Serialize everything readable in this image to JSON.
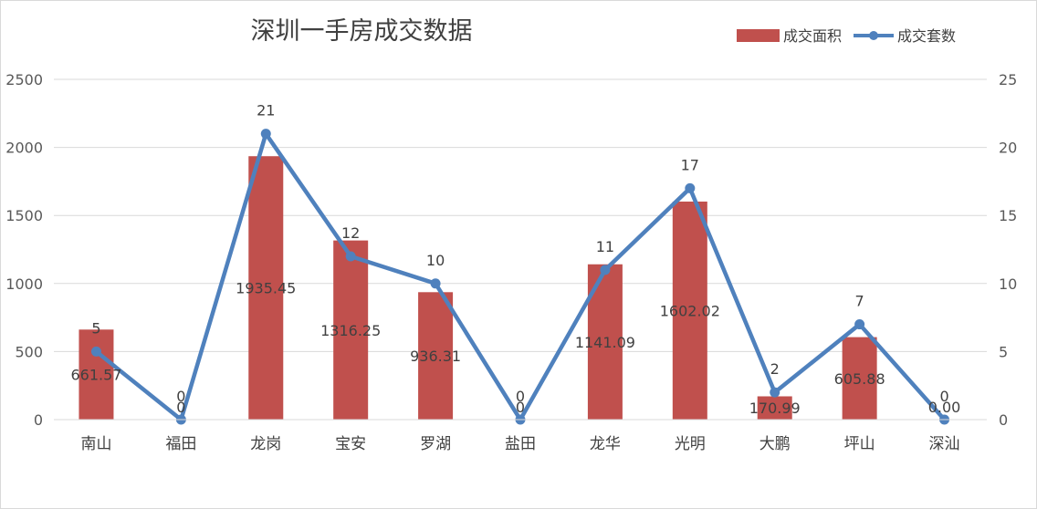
{
  "chart_data": {
    "type": "bar+line",
    "title": "深圳一手房成交数据",
    "categories": [
      "南山",
      "福田",
      "龙岗",
      "宝安",
      "罗湖",
      "盐田",
      "龙华",
      "光明",
      "大鹏",
      "坪山",
      "深汕"
    ],
    "series": [
      {
        "name": "成交面积",
        "type": "bar",
        "axis": "left",
        "color": "#C0504D",
        "values": [
          661.57,
          0,
          1935.45,
          1316.25,
          936.31,
          0,
          1141.09,
          1602.02,
          170.99,
          605.88,
          0
        ],
        "labels": [
          "661.57",
          "0",
          "1935.45",
          "1316.25",
          "936.31",
          "0",
          "1141.09",
          "1602.02",
          "170.99",
          "605.88",
          "0.00"
        ]
      },
      {
        "name": "成交套数",
        "type": "line",
        "axis": "right",
        "color": "#4F81BD",
        "values": [
          5,
          0,
          21,
          12,
          10,
          0,
          11,
          17,
          2,
          7,
          0
        ],
        "labels": [
          "5",
          "0",
          "21",
          "12",
          "10",
          "0",
          "11",
          "17",
          "2",
          "7",
          "0"
        ]
      }
    ],
    "y_left": {
      "min": 0,
      "max": 2500,
      "ticks": [
        "0",
        "500",
        "1000",
        "1500",
        "2000",
        "2500"
      ]
    },
    "y_right": {
      "min": 0,
      "max": 25,
      "ticks": [
        "0",
        "5",
        "10",
        "15",
        "20",
        "25"
      ]
    },
    "grid": true,
    "legend": "top-right"
  }
}
